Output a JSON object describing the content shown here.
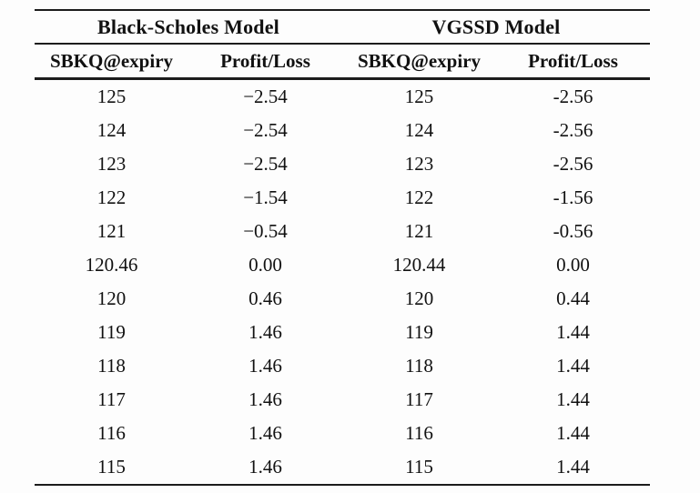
{
  "table": {
    "groups": [
      {
        "label": "Black-Scholes Model"
      },
      {
        "label": "VGSSD Model"
      }
    ],
    "columns": [
      "SBKQ@expiry",
      "Profit/Loss",
      "SBKQ@expiry",
      "Profit/Loss"
    ],
    "rows": [
      [
        "125",
        "−2.54",
        "125",
        "-2.56"
      ],
      [
        "124",
        "−2.54",
        "124",
        "-2.56"
      ],
      [
        "123",
        "−2.54",
        "123",
        "-2.56"
      ],
      [
        "122",
        "−1.54",
        "122",
        "-1.56"
      ],
      [
        "121",
        "−0.54",
        "121",
        "-0.56"
      ],
      [
        "120.46",
        "0.00",
        "120.44",
        "0.00"
      ],
      [
        "120",
        "0.46",
        "120",
        "0.44"
      ],
      [
        "119",
        "1.46",
        "119",
        "1.44"
      ],
      [
        "118",
        "1.46",
        "118",
        "1.44"
      ],
      [
        "117",
        "1.46",
        "117",
        "1.44"
      ],
      [
        "116",
        "1.46",
        "116",
        "1.44"
      ],
      [
        "115",
        "1.46",
        "115",
        "1.44"
      ]
    ],
    "colors": {
      "text": "#111111",
      "rule": "#1c1c1c",
      "background": "#fdfdfd"
    }
  }
}
